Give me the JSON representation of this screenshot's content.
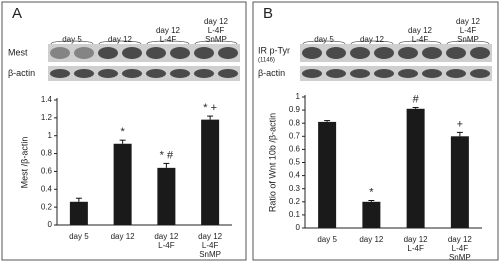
{
  "chart_data": [
    {
      "type": "bar",
      "panel": "A",
      "blot_rows": [
        "Mest",
        "β-actin"
      ],
      "ylabel": "Mest /β-actin",
      "categories": [
        [
          "day 5"
        ],
        [
          "day 12"
        ],
        [
          "day 12",
          "L-4F"
        ],
        [
          "day 12",
          "L-4F",
          "SnMP"
        ]
      ],
      "values": [
        0.26,
        0.91,
        0.64,
        1.18
      ],
      "errors": [
        0.04,
        0.04,
        0.05,
        0.04
      ],
      "annotations": [
        null,
        "*",
        "* #",
        "* +"
      ],
      "color": "#1a1a1a",
      "ylim": [
        0,
        1.4
      ],
      "yticks": [
        0,
        0.2,
        0.4,
        0.6,
        0.8,
        1,
        1.2,
        1.4
      ]
    },
    {
      "type": "bar",
      "panel": "B",
      "blot_rows": [
        "IR p-Tyr",
        "β-actin"
      ],
      "blot_row_note": "(1146)",
      "ylabel": "Ratio of Wnt 10b /β-actin",
      "categories": [
        [
          "day 5"
        ],
        [
          "day 12"
        ],
        [
          "day 12",
          "L-4F"
        ],
        [
          "day 12",
          "L-4F",
          "SnMP"
        ]
      ],
      "values": [
        0.81,
        0.2,
        0.91,
        0.7
      ],
      "errors": [
        0.01,
        0.01,
        0.01,
        0.03
      ],
      "annotations": [
        null,
        "*",
        "#",
        "+"
      ],
      "color": "#1a1a1a",
      "ylim": [
        0,
        1
      ],
      "yticks": [
        0,
        0.1,
        0.2,
        0.3,
        0.4,
        0.5,
        0.6,
        0.7,
        0.8,
        0.9,
        1
      ]
    }
  ]
}
